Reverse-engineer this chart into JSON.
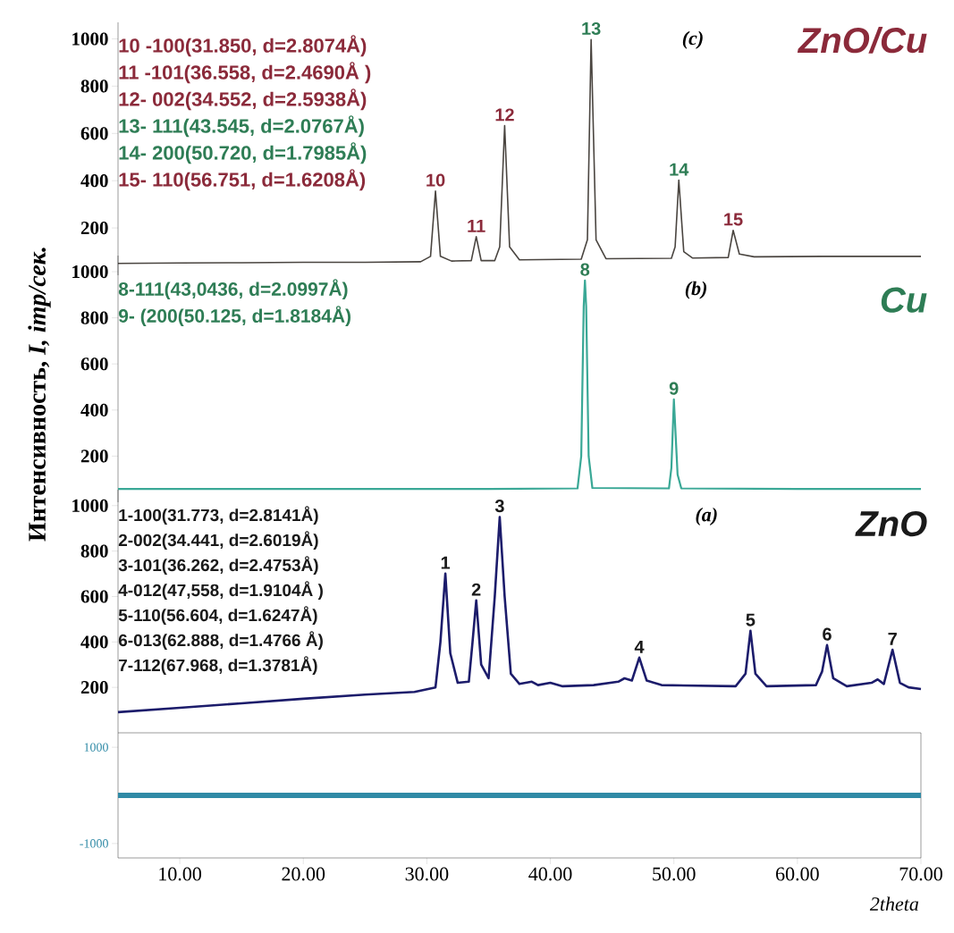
{
  "chart_data": [
    {
      "type": "line",
      "title": "ZnO/Cu",
      "xlim": [
        5,
        70
      ],
      "ylim": [
        0,
        1070
      ],
      "yticks": [
        200,
        400,
        600,
        800,
        1000
      ],
      "tick_labels": "y",
      "series": [
        {
          "color": "#4a4540",
          "x": [
            5,
            10,
            15,
            20,
            25,
            29.5,
            30.3,
            30.7,
            31.1,
            32,
            33.6,
            34.0,
            34.4,
            35.5,
            35.9,
            36.3,
            36.7,
            37.5,
            42.5,
            43.0,
            43.3,
            43.7,
            44.5,
            49.8,
            50.1,
            50.4,
            50.8,
            51.5,
            54.4,
            54.8,
            55.3,
            56.5,
            62,
            70
          ],
          "values": [
            50,
            52,
            53,
            55,
            55,
            57,
            80,
            356,
            80,
            60,
            62,
            163,
            62,
            62,
            120,
            633,
            120,
            65,
            68,
            150,
            997,
            150,
            70,
            72,
            120,
            402,
            100,
            73,
            75,
            190,
            90,
            78,
            80,
            80
          ]
        }
      ],
      "annotations": [
        "(c)",
        "10 -100(31.850, d=2.8074Å)",
        "11 -101(36.558, d=2.4690Å )",
        "12- 002(34.552, d=2.5938Å)",
        "13- 111(43.545, d=2.0767Å)",
        "14- 200(50.720, d=1.7985Å)",
        "15- 110(56.751, d=1.6208Å)",
        {
          "text": "10",
          "x": 30.7,
          "y": 356
        },
        {
          "text": "11",
          "x": 34.0,
          "y": 163
        },
        {
          "text": "12",
          "x": 36.3,
          "y": 633
        },
        {
          "text": "13",
          "x": 43.3,
          "y": 997
        },
        {
          "text": "14",
          "x": 50.4,
          "y": 402
        },
        {
          "text": "15",
          "x": 54.8,
          "y": 190
        }
      ]
    },
    {
      "type": "line",
      "title": "Cu",
      "ylabel": "Интенсивность, *I, imp/сек.*",
      "xlim": [
        5,
        70
      ],
      "ylim": [
        0,
        1070
      ],
      "yticks": [
        200,
        400,
        600,
        800,
        1000
      ],
      "tick_labels": "y",
      "series": [
        {
          "color": "#3aa896",
          "x": [
            5,
            20,
            35,
            42.2,
            42.5,
            42.7,
            42.8,
            42.9,
            43.1,
            43.4,
            49.6,
            49.8,
            50.0,
            50.3,
            50.6,
            60,
            70
          ],
          "values": [
            58,
            58,
            58,
            60,
            200,
            850,
            962,
            850,
            200,
            62,
            60,
            150,
            446,
            120,
            60,
            58,
            58
          ]
        }
      ],
      "annotations": [
        "(b)",
        "8-111(43,0436, d=2.0997Å)",
        "9- (200(50.125, d=1.8184Å)",
        {
          "text": "8",
          "x": 42.8,
          "y": 962
        },
        {
          "text": "9",
          "x": 50.0,
          "y": 446
        }
      ]
    },
    {
      "type": "line",
      "title": "ZnO",
      "xlim": [
        5,
        70
      ],
      "ylim": [
        0,
        1070
      ],
      "yticks": [
        200,
        400,
        600,
        800,
        1000
      ],
      "tick_labels": "y",
      "series": [
        {
          "color": "#1c1c6b",
          "x": [
            5,
            10,
            15,
            20,
            25,
            29,
            30.7,
            31.1,
            31.5,
            31.9,
            32.5,
            33.4,
            33.7,
            34.0,
            34.4,
            35.0,
            35.5,
            35.9,
            36.3,
            36.8,
            37.5,
            38.5,
            39,
            40,
            41,
            43.5,
            45.5,
            46,
            46.6,
            47.2,
            47.8,
            49,
            55,
            55.8,
            56.2,
            56.6,
            57.5,
            61.5,
            62.0,
            62.4,
            62.9,
            64,
            66.0,
            66.5,
            67.0,
            67.7,
            68.3,
            69,
            70
          ],
          "values": [
            91,
            110,
            130,
            150,
            168,
            180,
            200,
            400,
            701,
            350,
            220,
            225,
            400,
            583,
            300,
            240,
            600,
            950,
            600,
            260,
            215,
            225,
            210,
            220,
            205,
            210,
            225,
            240,
            230,
            331,
            230,
            210,
            205,
            260,
            449,
            260,
            205,
            210,
            270,
            386,
            240,
            205,
            220,
            235,
            215,
            366,
            220,
            200,
            193
          ]
        }
      ],
      "annotations": [
        "(a)",
        "1-100(31.773, d=2.8141Å)",
        "2-002(34.441, d=2.6019Å)",
        "3-101(36.262, d=2.4753Å)",
        "4-012(47,558, d=1.9104Å )",
        "5-110(56.604, d=1.6247Å)",
        "6-013(62.888, d=1.4766 Å)",
        "7-112(67.968, d=1.3781Å)",
        {
          "text": "1",
          "x": 31.5,
          "y": 701
        },
        {
          "text": "2",
          "x": 34.0,
          "y": 583
        },
        {
          "text": "3",
          "x": 35.9,
          "y": 950
        },
        {
          "text": "4",
          "x": 47.2,
          "y": 331
        },
        {
          "text": "5",
          "x": 56.2,
          "y": 449
        },
        {
          "text": "6",
          "x": 62.4,
          "y": 386
        },
        {
          "text": "7",
          "x": 67.7,
          "y": 366
        }
      ]
    },
    {
      "type": "line",
      "xlabel": "2theta",
      "xlim": [
        5,
        70
      ],
      "ylim": [
        -1300,
        1300
      ],
      "yticks": [
        -1000,
        1000
      ],
      "xticks": [
        {
          "value": 10,
          "label": "10.00"
        },
        {
          "value": 20,
          "label": "20.00"
        },
        {
          "value": 30,
          "label": "30.00"
        },
        {
          "value": 40,
          "label": "40.00"
        },
        {
          "value": 50,
          "label": "50.00"
        },
        {
          "value": 60,
          "label": "60.00"
        },
        {
          "value": 70,
          "label": "70.00"
        }
      ],
      "series": [
        {
          "color": "#2f8aa6",
          "x": [
            5,
            70
          ],
          "values": [
            0,
            0
          ]
        }
      ]
    }
  ]
}
